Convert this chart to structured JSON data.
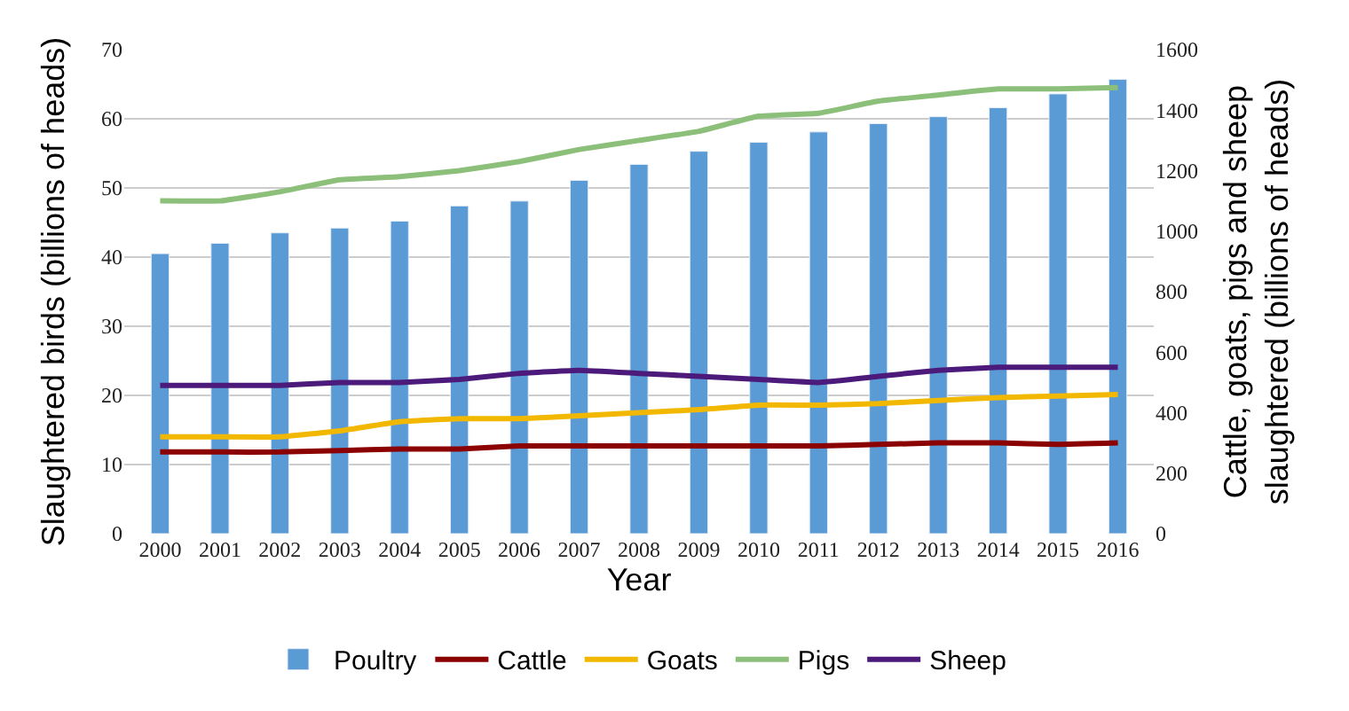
{
  "chart_data": {
    "type": "bar",
    "xlabel": "Year",
    "ylabel": "Slaughtered birds (billions of heads)",
    "y2label": "Cattle, goats, pigs and sheep\nslaughtered (billions of heads)",
    "categories": [
      "2000",
      "2001",
      "2002",
      "2003",
      "2004",
      "2005",
      "2006",
      "2007",
      "2008",
      "2009",
      "2010",
      "2011",
      "2012",
      "2013",
      "2014",
      "2015",
      "2016"
    ],
    "series": [
      {
        "name": "Poultry",
        "color": "#5b9bd5",
        "values": [
          40.5,
          42,
          43.5,
          44.2,
          45.2,
          47.4,
          48.1,
          51.1,
          53.4,
          55.3,
          56.6,
          58.1,
          59.3,
          60.3,
          61.6,
          63.6,
          65.7
        ]
      },
      {
        "name": "Cattle",
        "type": "line",
        "axis": "y2",
        "color": "#8b0000",
        "values": [
          270,
          270,
          270,
          275,
          280,
          280,
          290,
          290,
          290,
          290,
          290,
          290,
          295,
          300,
          300,
          295,
          300
        ]
      },
      {
        "name": "Goats",
        "type": "line",
        "axis": "y2",
        "color": "#f2b800",
        "values": [
          320,
          320,
          320,
          340,
          370,
          380,
          380,
          390,
          400,
          410,
          425,
          425,
          430,
          440,
          450,
          455,
          460
        ]
      },
      {
        "name": "Pigs",
        "type": "line",
        "axis": "y2",
        "color": "#8cc07a",
        "values": [
          1100,
          1100,
          1130,
          1170,
          1180,
          1200,
          1230,
          1270,
          1300,
          1330,
          1380,
          1390,
          1430,
          1450,
          1470,
          1470,
          1475
        ]
      },
      {
        "name": "Sheep",
        "type": "line",
        "axis": "y2",
        "color": "#4b1a7a",
        "values": [
          490,
          490,
          490,
          500,
          500,
          510,
          530,
          540,
          530,
          520,
          510,
          500,
          520,
          540,
          550,
          550,
          550
        ]
      }
    ],
    "ylim": [
      0,
      70
    ],
    "yticks": [
      0,
      10,
      20,
      30,
      40,
      50,
      60,
      70
    ],
    "y2lim": [
      0,
      1600
    ],
    "y2ticks": [
      0,
      200,
      400,
      600,
      800,
      1000,
      1200,
      1400,
      1600
    ],
    "grid": "y",
    "legend": "bottom"
  }
}
